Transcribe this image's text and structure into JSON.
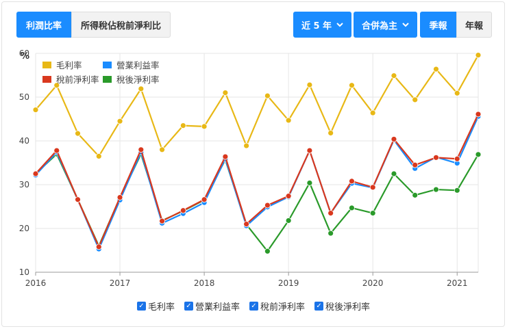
{
  "controls": {
    "tabs_left": [
      "利潤比率",
      "所得稅佔稅前淨利比"
    ],
    "period_label": "近 5 年",
    "consolidation_label": "合併為主",
    "tabs_right": [
      "季報",
      "年報"
    ]
  },
  "icons": {
    "dropdown": "chevron-down-icon",
    "checkbox": "checkbox-checked-icon"
  },
  "colors": {
    "primary_button": "#1a8cff",
    "gross": "#e8b816",
    "operating": "#1a8cff",
    "pretax": "#d9381e",
    "aftertax": "#2a9a2a"
  },
  "chart_data": {
    "type": "line",
    "ylabel": "%",
    "ylim": [
      10,
      60
    ],
    "y_ticks": [
      "10",
      "20",
      "30",
      "40",
      "50",
      "60"
    ],
    "x_ticks": [
      "2016",
      "2017",
      "2018",
      "2019",
      "2020",
      "2021"
    ],
    "xlim": [
      2016,
      2021.25
    ],
    "x": [
      2016.0,
      2016.25,
      2016.5,
      2016.75,
      2017.0,
      2017.25,
      2017.5,
      2017.75,
      2018.0,
      2018.25,
      2018.5,
      2018.75,
      2019.0,
      2019.25,
      2019.5,
      2019.75,
      2020.0,
      2020.25,
      2020.5,
      2020.75,
      2021.0,
      2021.25
    ],
    "grid": true,
    "legend_position": "top-left",
    "series": [
      {
        "name": "毛利率",
        "values": [
          47.1,
          52.7,
          41.7,
          36.5,
          44.5,
          51.9,
          38.0,
          43.5,
          43.3,
          51.0,
          38.9,
          50.3,
          44.7,
          52.8,
          41.8,
          52.7,
          46.4,
          54.9,
          49.4,
          56.4,
          50.9,
          59.6
        ]
      },
      {
        "name": "營業利益率",
        "values": [
          32.2,
          37.4,
          26.6,
          15.3,
          26.5,
          37.4,
          21.2,
          23.4,
          25.9,
          35.9,
          20.6,
          24.9,
          27.2,
          37.8,
          23.5,
          30.3,
          29.3,
          40.2,
          33.7,
          36.3,
          34.9,
          45.6
        ]
      },
      {
        "name": "稅前淨利率",
        "values": [
          32.5,
          37.8,
          26.6,
          15.8,
          27.1,
          38.0,
          21.7,
          24.1,
          26.6,
          36.4,
          21.0,
          25.3,
          27.4,
          37.8,
          23.5,
          30.8,
          29.4,
          40.4,
          34.5,
          36.2,
          35.9,
          46.1
        ]
      },
      {
        "name": "稅後淨利率",
        "values": [
          32.5,
          37.0,
          26.6,
          16.0,
          27.0,
          37.0,
          21.8,
          24.0,
          26.5,
          35.7,
          20.9,
          14.8,
          21.8,
          30.4,
          18.9,
          24.7,
          23.5,
          32.5,
          27.6,
          28.9,
          28.7,
          36.9
        ]
      }
    ]
  },
  "bottom_legend": [
    "毛利率",
    "營業利益率",
    "稅前淨利率",
    "稅後淨利率"
  ]
}
